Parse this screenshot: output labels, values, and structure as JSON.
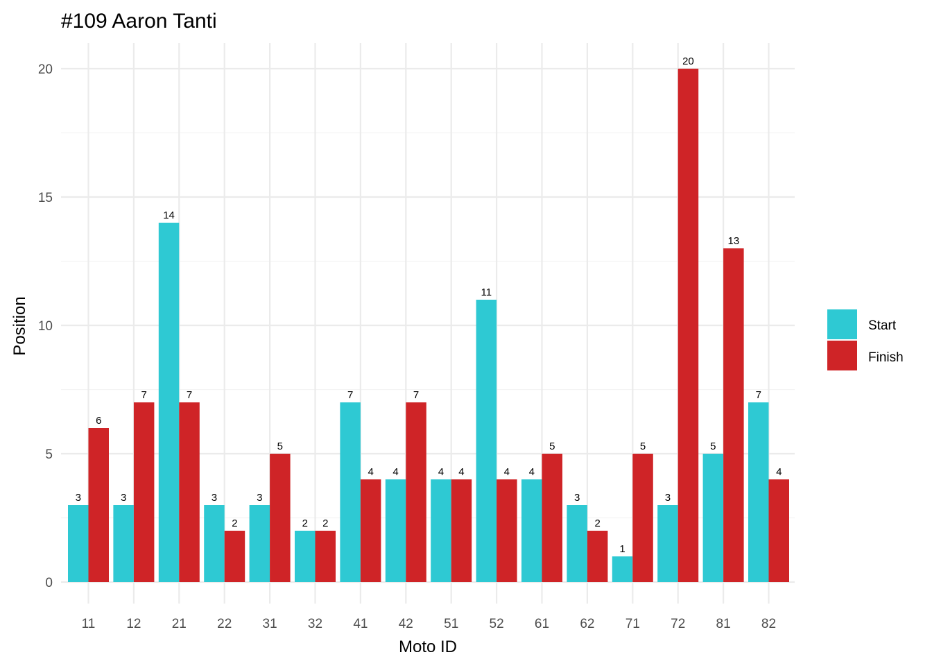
{
  "chart_data": {
    "type": "bar",
    "title": "#109 Aaron Tanti",
    "xlabel": "Moto ID",
    "ylabel": "Position",
    "categories": [
      "11",
      "12",
      "21",
      "22",
      "31",
      "32",
      "41",
      "42",
      "51",
      "52",
      "61",
      "62",
      "71",
      "72",
      "81",
      "82"
    ],
    "series": [
      {
        "name": "Start",
        "color": "#2ec9d3",
        "values": [
          3,
          3,
          14,
          3,
          3,
          2,
          7,
          4,
          4,
          11,
          4,
          3,
          1,
          3,
          5,
          7
        ]
      },
      {
        "name": "Finish",
        "color": "#cf2427",
        "values": [
          6,
          7,
          7,
          2,
          5,
          2,
          4,
          7,
          4,
          4,
          5,
          2,
          5,
          20,
          13,
          4
        ]
      }
    ],
    "ylim": [
      0,
      21
    ],
    "yticks": [
      "0",
      "5",
      "10",
      "15",
      "20"
    ],
    "grid": true,
    "legend": "right",
    "data_labels": true
  }
}
